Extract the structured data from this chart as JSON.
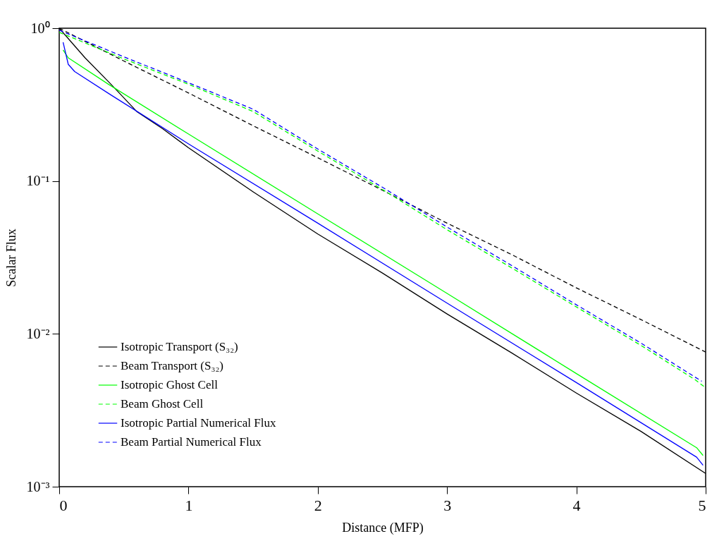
{
  "chart_data": {
    "type": "line",
    "xlabel": "Distance (MFP)",
    "ylabel": "Scalar Flux",
    "log": "y",
    "grid": false,
    "legend": "bottom left",
    "xlim": [
      0,
      5
    ],
    "xticks": [
      0,
      1,
      2,
      3,
      4,
      5
    ],
    "ylim": [
      0.001,
      1
    ],
    "yticks": [
      {
        "value": 0.001,
        "label": "10⁻³"
      },
      {
        "value": 0.01,
        "label": "10⁻²"
      },
      {
        "value": 0.1,
        "label": "10⁻¹"
      },
      {
        "value": 1,
        "label": "10⁰"
      }
    ],
    "series": [
      {
        "name": "Isotropic Transport (S₃₂)",
        "color": "#000000",
        "line_style": "solid",
        "x": [
          0,
          0.1,
          0.2,
          0.4,
          0.6,
          0.8,
          1,
          1.5,
          2,
          2.5,
          3,
          3.5,
          4,
          4.5,
          5
        ],
        "values": [
          1.0,
          0.8,
          0.64,
          0.43,
          0.285,
          0.22,
          0.165,
          0.085,
          0.045,
          0.025,
          0.0135,
          0.0075,
          0.0041,
          0.0023,
          0.00122
        ]
      },
      {
        "name": "Beam Transport (S₃₂)",
        "color": "#000000",
        "line_style": "dashed",
        "x": [
          0,
          0.5,
          1,
          1.5,
          2,
          2.5,
          3,
          3.5,
          4,
          4.5,
          5
        ],
        "values": [
          1.0,
          0.61,
          0.377,
          0.23,
          0.142,
          0.087,
          0.053,
          0.033,
          0.02,
          0.0124,
          0.0076
        ]
      },
      {
        "name": "Isotropic Ghost Cell",
        "color": "#00ff00",
        "line_style": "solid",
        "x": [
          0.03,
          0.07,
          0.38,
          1,
          2,
          3,
          4,
          4.93,
          4.98
        ],
        "values": [
          0.72,
          0.64,
          0.43,
          0.203,
          0.061,
          0.0184,
          0.0055,
          0.0018,
          0.0016
        ]
      },
      {
        "name": "Beam Ghost Cell",
        "color": "#00ff00",
        "line_style": "dashed",
        "x": [
          0,
          0.5,
          1,
          1.5,
          2,
          2.5,
          3,
          3.5,
          4,
          4.5,
          4.92,
          4.99
        ],
        "values": [
          0.94,
          0.63,
          0.43,
          0.285,
          0.157,
          0.088,
          0.048,
          0.027,
          0.015,
          0.0084,
          0.005,
          0.0045
        ]
      },
      {
        "name": "Isotropic Partial Numerical Flux",
        "color": "#0000ff",
        "line_style": "solid",
        "x": [
          0.03,
          0.07,
          0.12,
          0.4,
          1,
          2,
          3,
          4,
          4.93,
          4.98
        ],
        "values": [
          0.81,
          0.58,
          0.52,
          0.366,
          0.175,
          0.053,
          0.0159,
          0.0048,
          0.00156,
          0.00138
        ]
      },
      {
        "name": "Beam Partial Numerical Flux",
        "color": "#0000ff",
        "line_style": "dashed",
        "x": [
          0,
          0.5,
          1,
          1.5,
          2,
          2.5,
          3,
          3.5,
          4,
          4.5,
          4.92,
          4.97
        ],
        "values": [
          0.97,
          0.65,
          0.44,
          0.295,
          0.162,
          0.091,
          0.05,
          0.028,
          0.0155,
          0.0087,
          0.0052,
          0.0049
        ]
      }
    ]
  }
}
